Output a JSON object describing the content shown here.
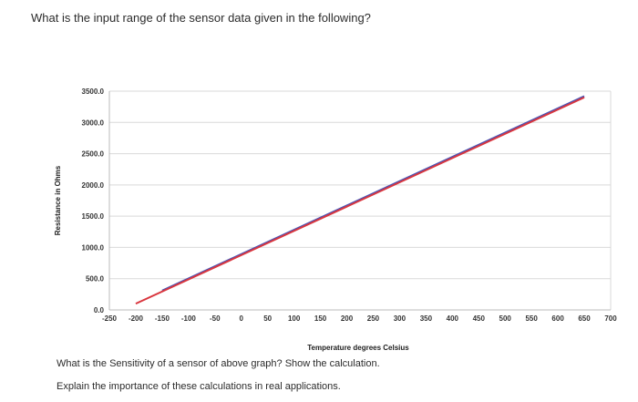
{
  "question": "What is the input range of the sensor data given in the following?",
  "follow_up_1": "What is the Sensitivity of a sensor of above graph? Show the calculation.",
  "follow_up_2": "Explain the importance of these calculations in real applications.",
  "colors": {
    "series_blue": "#4a55b5",
    "series_red": "#d9363e",
    "grid": "#d9d9d9"
  },
  "chart_data": {
    "type": "line",
    "xlabel": "Temperature degrees Celsius",
    "ylabel": "Resistance in Ohms",
    "x_ticks": [
      "-250",
      "-200",
      "-150",
      "-100",
      "-50",
      "0",
      "50",
      "100",
      "150",
      "200",
      "250",
      "300",
      "350",
      "400",
      "450",
      "500",
      "550",
      "600",
      "650",
      "700"
    ],
    "y_ticks": [
      "0.0",
      "500.0",
      "1000.0",
      "1500.0",
      "2000.0",
      "2500.0",
      "3000.0",
      "3500.0"
    ],
    "xlim": [
      -250,
      700
    ],
    "ylim": [
      0,
      3500
    ],
    "grid": true,
    "series": [
      {
        "color": "#4a55b5",
        "x": [
          -150,
          650
        ],
        "y": [
          310,
          3420
        ]
      },
      {
        "color": "#d9363e",
        "x": [
          -200,
          650
        ],
        "y": [
          100,
          3400
        ]
      }
    ]
  }
}
